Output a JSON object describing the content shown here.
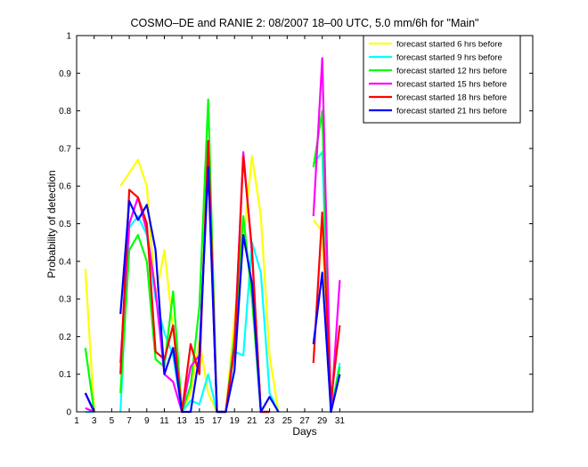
{
  "chart_data": {
    "type": "line",
    "title": "COSMO–DE and RANIE 2: 08/2007 18–00 UTC, 5.0 mm/6h for \"Main\"",
    "xlabel": "Days",
    "ylabel": "Probability of detection",
    "xlim": [
      1,
      53
    ],
    "ylim": [
      0,
      1
    ],
    "x_ticks": [
      1,
      3,
      5,
      7,
      9,
      11,
      13,
      15,
      17,
      19,
      21,
      23,
      25,
      27,
      29,
      31
    ],
    "y_ticks": [
      0,
      0.1,
      0.2,
      0.3,
      0.4,
      0.5,
      0.6,
      0.7,
      0.8,
      0.9,
      1
    ],
    "y_tick_labels": [
      "0",
      "0.1",
      "0.2",
      "0.3",
      "0.4",
      "0.5",
      "0.6",
      "0.7",
      "0.8",
      "0.9",
      "1"
    ],
    "grid": false,
    "legend_position": "top-right",
    "series": [
      {
        "name": "forecast started 6 hrs before",
        "color": "#ffff00",
        "segments": [
          [
            [
              2,
              0.38
            ],
            [
              3,
              0.0
            ]
          ],
          [
            [
              6,
              0.6
            ],
            [
              8,
              0.67
            ],
            [
              9,
              0.6
            ],
            [
              10,
              0.3
            ],
            [
              11,
              0.43
            ],
            [
              12,
              0.22
            ],
            [
              13,
              0.0
            ],
            [
              14,
              0.05
            ],
            [
              15,
              0.19
            ],
            [
              16,
              0.05
            ],
            [
              17,
              0.0
            ],
            [
              18,
              0.0
            ],
            [
              19,
              0.25
            ],
            [
              20,
              0.45
            ],
            [
              21,
              0.68
            ],
            [
              22,
              0.52
            ],
            [
              23,
              0.15
            ],
            [
              24,
              0.0
            ]
          ],
          [
            [
              28,
              0.51
            ],
            [
              29,
              0.48
            ],
            [
              30,
              0.0
            ],
            [
              31,
              0.1
            ]
          ]
        ]
      },
      {
        "name": "forecast started 9 hrs before",
        "color": "#00ffff",
        "segments": [
          [
            [
              2,
              0.0
            ],
            [
              3,
              0.0
            ]
          ],
          [
            [
              6,
              0.0
            ],
            [
              7,
              0.49
            ],
            [
              8,
              0.52
            ],
            [
              9,
              0.47
            ],
            [
              10,
              0.3
            ],
            [
              11,
              0.21
            ],
            [
              12,
              0.15
            ],
            [
              13,
              0.0
            ],
            [
              14,
              0.03
            ],
            [
              15,
              0.02
            ],
            [
              16,
              0.1
            ],
            [
              17,
              0.0
            ],
            [
              18,
              0.0
            ],
            [
              19,
              0.16
            ],
            [
              20,
              0.15
            ],
            [
              21,
              0.45
            ],
            [
              22,
              0.37
            ],
            [
              23,
              0.05
            ],
            [
              24,
              0.0
            ]
          ],
          [
            [
              28,
              0.66
            ],
            [
              29,
              0.69
            ],
            [
              30,
              0.0
            ],
            [
              31,
              0.13
            ]
          ]
        ]
      },
      {
        "name": "forecast started 12 hrs before",
        "color": "#00ff00",
        "segments": [
          [
            [
              2,
              0.17
            ],
            [
              3,
              0.0
            ]
          ],
          [
            [
              6,
              0.05
            ],
            [
              7,
              0.43
            ],
            [
              8,
              0.47
            ],
            [
              9,
              0.4
            ],
            [
              10,
              0.14
            ],
            [
              11,
              0.12
            ],
            [
              12,
              0.32
            ],
            [
              13,
              0.0
            ],
            [
              14,
              0.07
            ],
            [
              15,
              0.28
            ],
            [
              16,
              0.83
            ],
            [
              17,
              0.0
            ],
            [
              18,
              0.0
            ],
            [
              19,
              0.2
            ],
            [
              20,
              0.52
            ],
            [
              21,
              0.3
            ],
            [
              22,
              0.0
            ],
            [
              23,
              0.0
            ]
          ],
          [
            [
              28,
              0.65
            ],
            [
              29,
              0.8
            ],
            [
              30,
              0.0
            ],
            [
              31,
              0.12
            ]
          ]
        ]
      },
      {
        "name": "forecast started 15 hrs before",
        "color": "#ff00ff",
        "segments": [
          [
            [
              2,
              0.01
            ],
            [
              3,
              0.0
            ]
          ],
          [
            [
              6,
              0.13
            ],
            [
              7,
              0.5
            ],
            [
              8,
              0.57
            ],
            [
              9,
              0.48
            ],
            [
              10,
              0.32
            ],
            [
              11,
              0.1
            ],
            [
              12,
              0.08
            ],
            [
              13,
              0.0
            ],
            [
              14,
              0.12
            ],
            [
              15,
              0.15
            ],
            [
              16,
              0.67
            ],
            [
              17,
              0.0
            ],
            [
              18,
              0.0
            ],
            [
              19,
              0.18
            ],
            [
              20,
              0.69
            ],
            [
              21,
              0.42
            ],
            [
              22,
              0.0
            ],
            [
              23,
              0.0
            ]
          ],
          [
            [
              28,
              0.52
            ],
            [
              29,
              0.94
            ],
            [
              30,
              0.0
            ],
            [
              31,
              0.35
            ]
          ]
        ]
      },
      {
        "name": "forecast started 18 hrs before",
        "color": "#ff0000",
        "segments": [
          [
            [
              2,
              0.05
            ],
            [
              3,
              0.0
            ]
          ],
          [
            [
              6,
              0.1
            ],
            [
              7,
              0.59
            ],
            [
              8,
              0.57
            ],
            [
              9,
              0.5
            ],
            [
              10,
              0.16
            ],
            [
              11,
              0.14
            ],
            [
              12,
              0.23
            ],
            [
              13,
              0.0
            ],
            [
              14,
              0.18
            ],
            [
              15,
              0.1
            ],
            [
              16,
              0.72
            ],
            [
              17,
              0.0
            ],
            [
              18,
              0.0
            ],
            [
              19,
              0.17
            ],
            [
              20,
              0.68
            ],
            [
              21,
              0.43
            ],
            [
              22,
              0.0
            ],
            [
              23,
              0.0
            ]
          ],
          [
            [
              28,
              0.13
            ],
            [
              29,
              0.53
            ],
            [
              30,
              0.03
            ],
            [
              31,
              0.23
            ]
          ]
        ]
      },
      {
        "name": "forecast started 21 hrs before",
        "color": "#0000ff",
        "segments": [
          [
            [
              2,
              0.05
            ],
            [
              3,
              0.0
            ]
          ],
          [
            [
              6,
              0.26
            ],
            [
              7,
              0.56
            ],
            [
              8,
              0.51
            ],
            [
              9,
              0.55
            ],
            [
              10,
              0.43
            ],
            [
              11,
              0.1
            ],
            [
              12,
              0.17
            ],
            [
              13,
              0.0
            ],
            [
              14,
              0.0
            ],
            [
              15,
              0.15
            ],
            [
              16,
              0.65
            ],
            [
              17,
              0.0
            ],
            [
              18,
              0.0
            ],
            [
              19,
              0.11
            ],
            [
              20,
              0.47
            ],
            [
              21,
              0.34
            ],
            [
              22,
              0.0
            ],
            [
              23,
              0.04
            ],
            [
              24,
              0.0
            ]
          ],
          [
            [
              28,
              0.18
            ],
            [
              29,
              0.37
            ],
            [
              30,
              0.0
            ],
            [
              31,
              0.1
            ]
          ]
        ]
      }
    ]
  }
}
